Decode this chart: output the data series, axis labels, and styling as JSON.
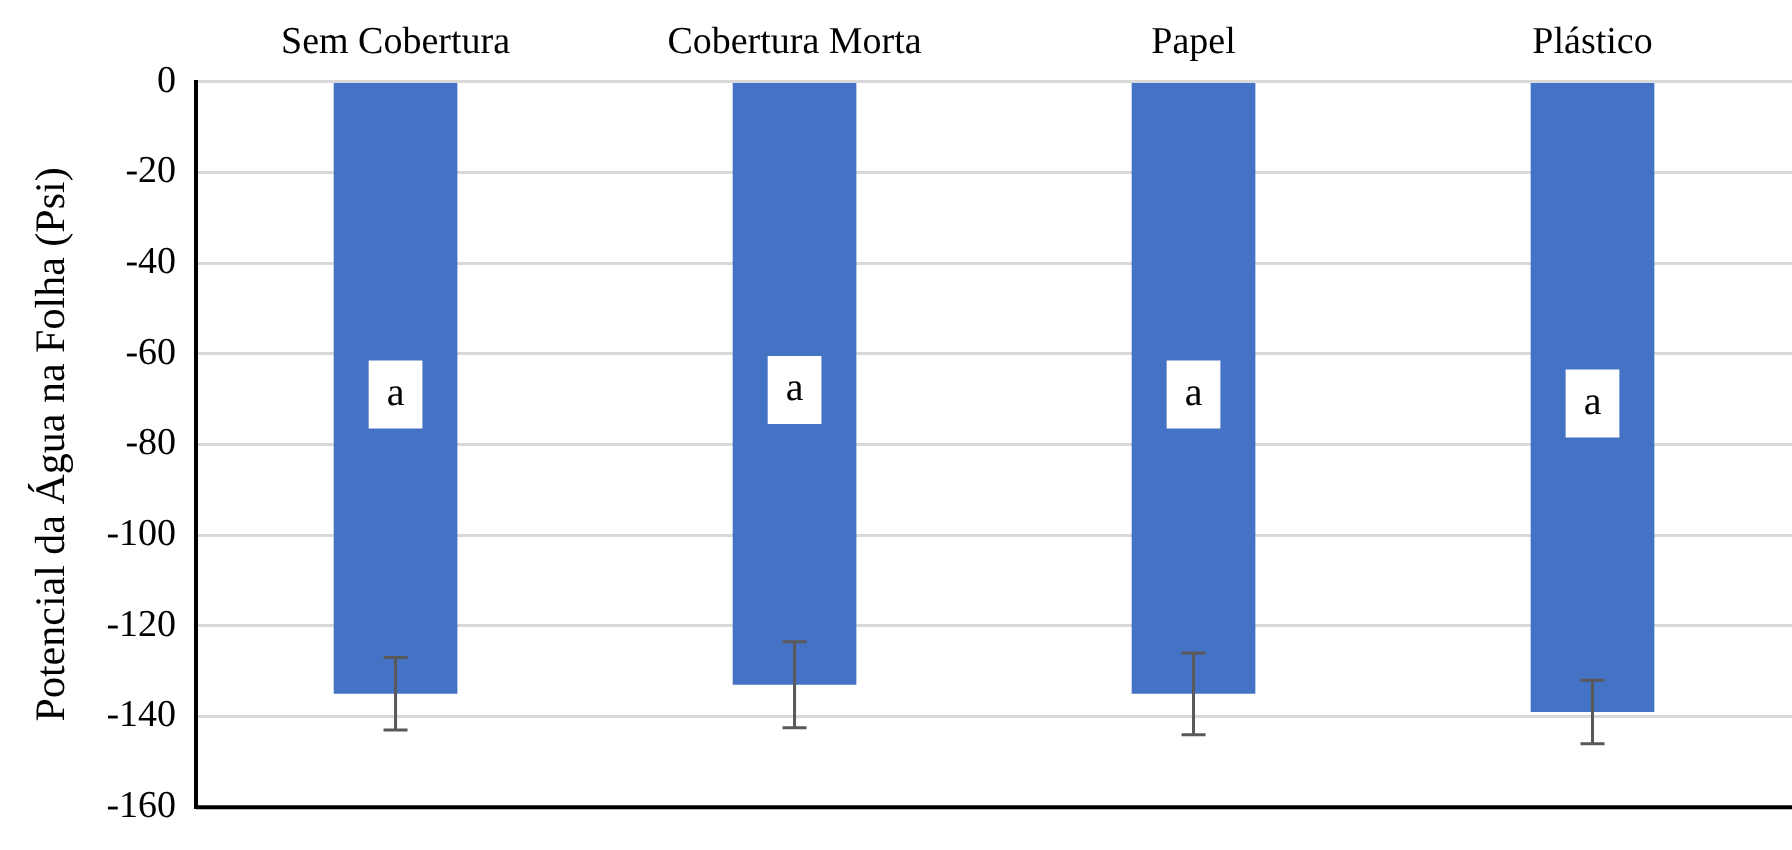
{
  "chart_data": {
    "type": "bar",
    "ylabel": "Potencial da Água na Folha (Psi)",
    "categories": [
      "Sem Cobertura",
      "Cobertura Morta",
      "Papel",
      "Plástico"
    ],
    "values": [
      -135,
      -133,
      -135,
      -139
    ],
    "errors": [
      8,
      9.5,
      9,
      7
    ],
    "color": "#4472c4",
    "ylim": [
      -160,
      0
    ],
    "yticks": [
      -160,
      -140,
      -120,
      -100,
      -80,
      -60,
      -40,
      -20,
      0
    ],
    "grid": "y",
    "annotations": [
      {
        "text": "a",
        "x": "Sem Cobertura",
        "y": -69
      },
      {
        "text": "a",
        "x": "Cobertura Morta",
        "y": -68
      },
      {
        "text": "a",
        "x": "Papel",
        "y": -69
      },
      {
        "text": "a",
        "x": "Plástico",
        "y": -71
      }
    ]
  }
}
